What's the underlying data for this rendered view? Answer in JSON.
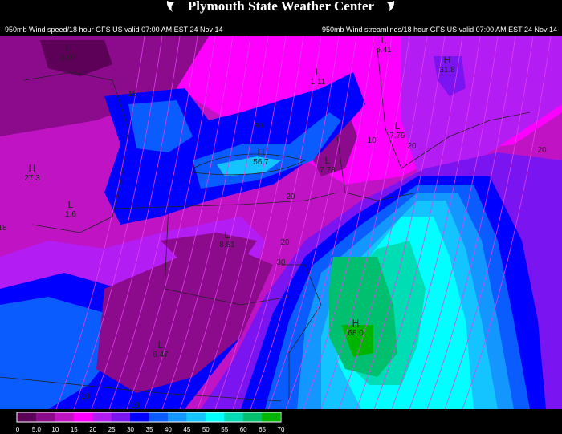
{
  "header": {
    "title": "Plymouth State Weather Center",
    "left_subtitle": "950mb Wind speed/18 hour GFS US valid 07:00 AM EST 24 Nov 14",
    "right_subtitle": "950mb Wind streamlines/18 hour GFS US valid 07:00 AM EST 24 Nov 14",
    "logo_icon": "psu-swoosh-icon"
  },
  "map": {
    "labels": [
      {
        "letter": "L",
        "value": "2.07"
      },
      {
        "letter": "H",
        "value": "27.3"
      },
      {
        "letter": "L",
        "value": "1.6"
      },
      {
        "letter": "",
        "value": "18"
      },
      {
        "letter": "",
        "value": "15"
      },
      {
        "letter": "H",
        "value": "56.7"
      },
      {
        "letter": "",
        "value": "30"
      },
      {
        "letter": "L",
        "value": "1.11"
      },
      {
        "letter": "L",
        "value": "6.41"
      },
      {
        "letter": "H",
        "value": "31.8"
      },
      {
        "letter": "",
        "value": "10"
      },
      {
        "letter": "L",
        "value": "7.79"
      },
      {
        "letter": "",
        "value": "20"
      },
      {
        "letter": "L",
        "value": "7.78"
      },
      {
        "letter": "",
        "value": "20"
      },
      {
        "letter": "",
        "value": "20"
      },
      {
        "letter": "",
        "value": "20"
      },
      {
        "letter": "",
        "value": "30"
      },
      {
        "letter": "L",
        "value": "8.81"
      },
      {
        "letter": "L",
        "value": "6.47"
      },
      {
        "letter": "",
        "value": "10"
      },
      {
        "letter": "",
        "value": "10"
      },
      {
        "letter": "H",
        "value": "68.0"
      }
    ]
  },
  "colorbar": {
    "units_ticks": [
      "0",
      "5.0",
      "10",
      "15",
      "20",
      "25",
      "30",
      "35",
      "40",
      "45",
      "50",
      "55",
      "60",
      "65",
      "70"
    ],
    "colors": [
      "#5c0058",
      "#8c0a8c",
      "#c014c4",
      "#ff00ff",
      "#b41cf4",
      "#7a14f0",
      "#0000ff",
      "#0a5cff",
      "#1496ff",
      "#14c4ff",
      "#00ffff",
      "#00dcb4",
      "#00c070",
      "#00b400"
    ]
  }
}
